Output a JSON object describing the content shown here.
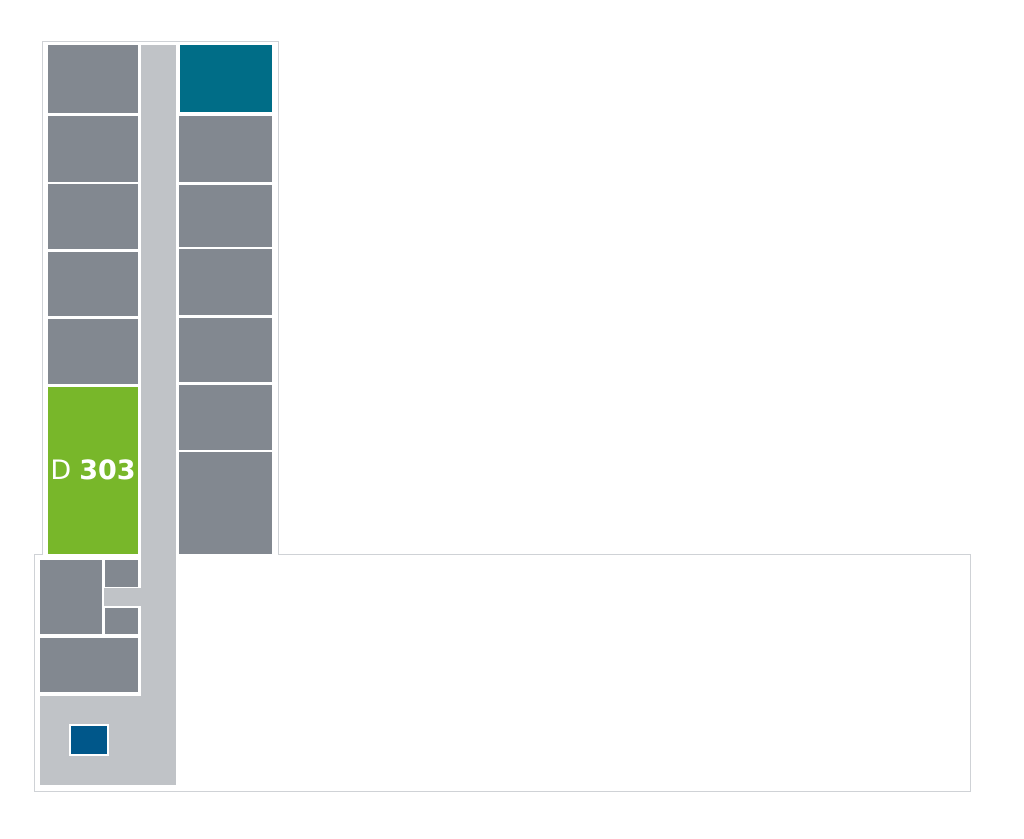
{
  "colors": {
    "room": "#828890",
    "corridor": "#c0c3c7",
    "highlight": "#78b72a",
    "teal": "#006d87",
    "blue": "#00578a"
  },
  "selected_room": {
    "prefix": "D",
    "number": "303"
  }
}
